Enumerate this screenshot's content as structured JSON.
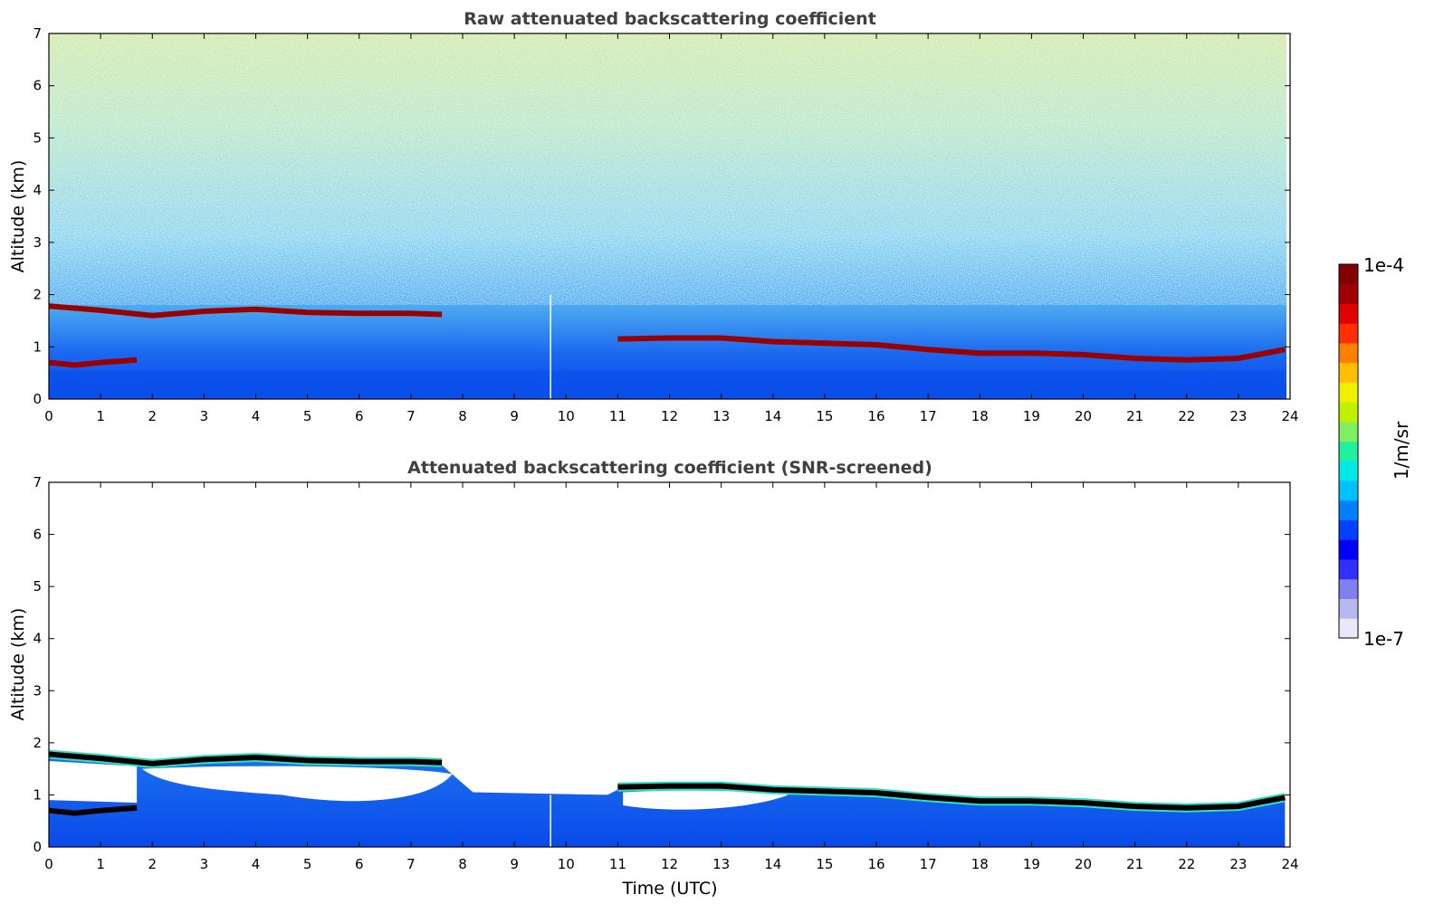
{
  "chart_data": [
    {
      "type": "heatmap",
      "title": "Raw attenuated backscattering coefficient",
      "xlabel": "",
      "ylabel": "Altitude (km)",
      "xlim": [
        0,
        24
      ],
      "ylim": [
        0,
        7
      ],
      "x_ticks": [
        "0",
        "1",
        "2",
        "3",
        "4",
        "5",
        "6",
        "7",
        "8",
        "9",
        "10",
        "11",
        "12",
        "13",
        "14",
        "15",
        "16",
        "17",
        "18",
        "19",
        "20",
        "21",
        "22",
        "23",
        "24"
      ],
      "y_ticks": [
        "0",
        "1",
        "2",
        "3",
        "4",
        "5",
        "6",
        "7"
      ],
      "cloud_layer_km": [
        [
          0,
          1.78
        ],
        [
          1,
          1.7
        ],
        [
          2,
          1.6
        ],
        [
          3,
          1.68
        ],
        [
          4,
          1.72
        ],
        [
          5,
          1.66
        ],
        [
          6,
          1.64
        ],
        [
          7,
          1.64
        ],
        [
          7.6,
          1.62
        ],
        [
          11,
          1.15
        ],
        [
          12,
          1.17
        ],
        [
          13,
          1.17
        ],
        [
          14,
          1.1
        ],
        [
          15,
          1.07
        ],
        [
          16,
          1.04
        ],
        [
          17,
          0.95
        ],
        [
          18,
          0.88
        ],
        [
          19,
          0.88
        ],
        [
          20,
          0.85
        ],
        [
          21,
          0.78
        ],
        [
          22,
          0.75
        ],
        [
          23,
          0.78
        ],
        [
          23.9,
          0.95
        ]
      ],
      "lower_layer_km": [
        [
          0,
          0.7
        ],
        [
          0.5,
          0.65
        ],
        [
          1,
          0.7
        ],
        [
          1.7,
          0.75
        ]
      ],
      "gap_time": 9.7,
      "grid": false
    },
    {
      "type": "heatmap",
      "title": "Attenuated backscattering coefficient (SNR-screened)",
      "xlabel": "Time (UTC)",
      "ylabel": "Altitude (km)",
      "xlim": [
        0,
        24
      ],
      "ylim": [
        0,
        7
      ],
      "x_ticks": [
        "0",
        "1",
        "2",
        "3",
        "4",
        "5",
        "6",
        "7",
        "8",
        "9",
        "10",
        "11",
        "12",
        "13",
        "14",
        "15",
        "16",
        "17",
        "18",
        "19",
        "20",
        "21",
        "22",
        "23",
        "24"
      ],
      "y_ticks": [
        "0",
        "1",
        "2",
        "3",
        "4",
        "5",
        "6",
        "7"
      ],
      "cloud_layer_km": [
        [
          0,
          1.78
        ],
        [
          1,
          1.7
        ],
        [
          2,
          1.6
        ],
        [
          3,
          1.68
        ],
        [
          4,
          1.72
        ],
        [
          5,
          1.66
        ],
        [
          6,
          1.64
        ],
        [
          7,
          1.64
        ],
        [
          7.6,
          1.62
        ],
        [
          11,
          1.15
        ],
        [
          12,
          1.17
        ],
        [
          13,
          1.17
        ],
        [
          14,
          1.1
        ],
        [
          15,
          1.07
        ],
        [
          16,
          1.04
        ],
        [
          17,
          0.95
        ],
        [
          18,
          0.88
        ],
        [
          19,
          0.88
        ],
        [
          20,
          0.85
        ],
        [
          21,
          0.78
        ],
        [
          22,
          0.75
        ],
        [
          23,
          0.78
        ],
        [
          23.9,
          0.95
        ]
      ],
      "lower_layer_km": [
        [
          0,
          0.7
        ],
        [
          0.5,
          0.65
        ],
        [
          1,
          0.7
        ],
        [
          1.7,
          0.75
        ]
      ],
      "gap_time": 9.7,
      "grid": false
    }
  ],
  "colorbar": {
    "max_label": "1e-4",
    "min_label": "1e-7",
    "unit_label": "1/m/sr",
    "colors": [
      "#e8e8f8",
      "#b8b8f0",
      "#8080f0",
      "#3030ff",
      "#0000ff",
      "#0040ff",
      "#0080ff",
      "#00c0ff",
      "#00e8e8",
      "#20f0a0",
      "#80f060",
      "#c0f000",
      "#f0f000",
      "#ffc000",
      "#ff8000",
      "#ff3000",
      "#e00000",
      "#a00000",
      "#800000"
    ]
  }
}
